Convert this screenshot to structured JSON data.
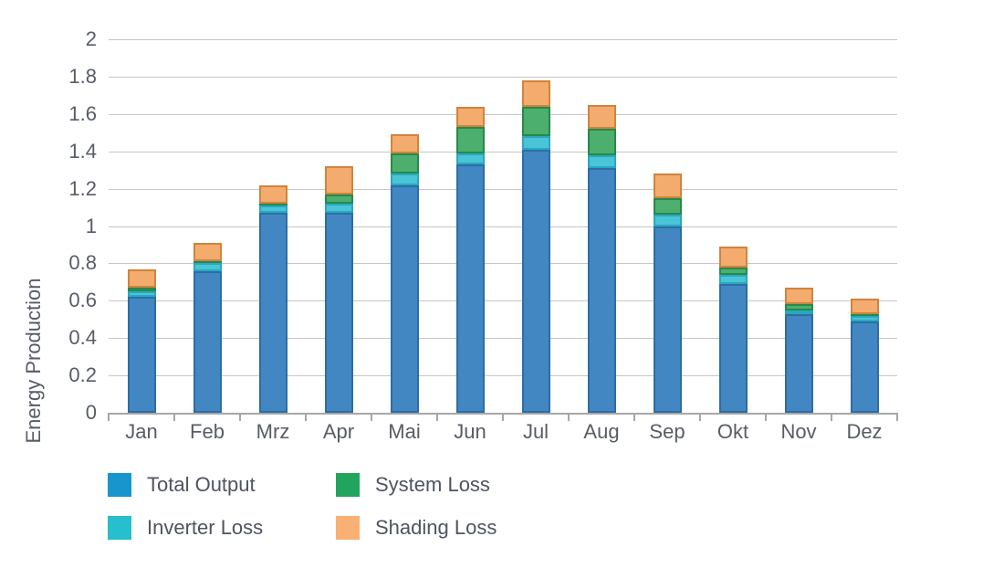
{
  "chart_data": {
    "type": "bar",
    "stacked": true,
    "title": "",
    "xlabel": "",
    "ylabel": "Energy Production",
    "ylim": [
      0,
      2
    ],
    "ytick_step": 0.2,
    "grid": true,
    "legend_position": "bottom-left, two columns",
    "categories": [
      "Jan",
      "Feb",
      "Mrz",
      "Apr",
      "Mai",
      "Jun",
      "Jul",
      "Aug",
      "Sep",
      "Okt",
      "Nov",
      "Dez"
    ],
    "series": [
      {
        "name": "Total Output",
        "bar_fill": "#4287c1",
        "bar_border": "#2d6da6",
        "legend_color": "#1895cd",
        "values": [
          0.62,
          0.76,
          1.07,
          1.07,
          1.22,
          1.33,
          1.41,
          1.31,
          1.0,
          0.69,
          0.53,
          0.49
        ]
      },
      {
        "name": "Inverter Loss",
        "bar_fill": "#4cc4d7",
        "bar_border": "#27a9bf",
        "legend_color": "#27becd",
        "values": [
          0.03,
          0.04,
          0.04,
          0.05,
          0.06,
          0.06,
          0.07,
          0.07,
          0.06,
          0.05,
          0.02,
          0.03
        ]
      },
      {
        "name": "System Loss",
        "bar_fill": "#4caf6d",
        "bar_border": "#27894c",
        "legend_color": "#21a55e",
        "values": [
          0.02,
          0.01,
          0.01,
          0.05,
          0.11,
          0.14,
          0.16,
          0.14,
          0.09,
          0.04,
          0.03,
          0.01
        ]
      },
      {
        "name": "Shading Loss",
        "bar_fill": "#f3ab6e",
        "bar_border": "#d0843c",
        "legend_color": "#f8b075",
        "values": [
          0.1,
          0.1,
          0.1,
          0.15,
          0.1,
          0.11,
          0.14,
          0.13,
          0.13,
          0.11,
          0.09,
          0.08
        ]
      }
    ],
    "totals": [
      0.77,
      0.91,
      1.22,
      1.32,
      1.49,
      1.64,
      1.78,
      1.65,
      1.28,
      0.89,
      0.67,
      0.61
    ],
    "yticks": [
      {
        "v": 0,
        "label": "0"
      },
      {
        "v": 0.2,
        "label": "0.2"
      },
      {
        "v": 0.4,
        "label": "0.4"
      },
      {
        "v": 0.6,
        "label": "0.6"
      },
      {
        "v": 0.8,
        "label": "0.8"
      },
      {
        "v": 1,
        "label": "1"
      },
      {
        "v": 1.2,
        "label": "1.2"
      },
      {
        "v": 1.4,
        "label": "1.4"
      },
      {
        "v": 1.6,
        "label": "1.6"
      },
      {
        "v": 1.8,
        "label": "1.8"
      },
      {
        "v": 2,
        "label": "2"
      }
    ]
  },
  "legend": {
    "items": [
      {
        "label": "Total Output",
        "color": "#1895cd"
      },
      {
        "label": "Inverter Loss",
        "color": "#27becd"
      },
      {
        "label": "System Loss",
        "color": "#21a55e"
      },
      {
        "label": "Shading Loss",
        "color": "#f8b075"
      }
    ]
  }
}
